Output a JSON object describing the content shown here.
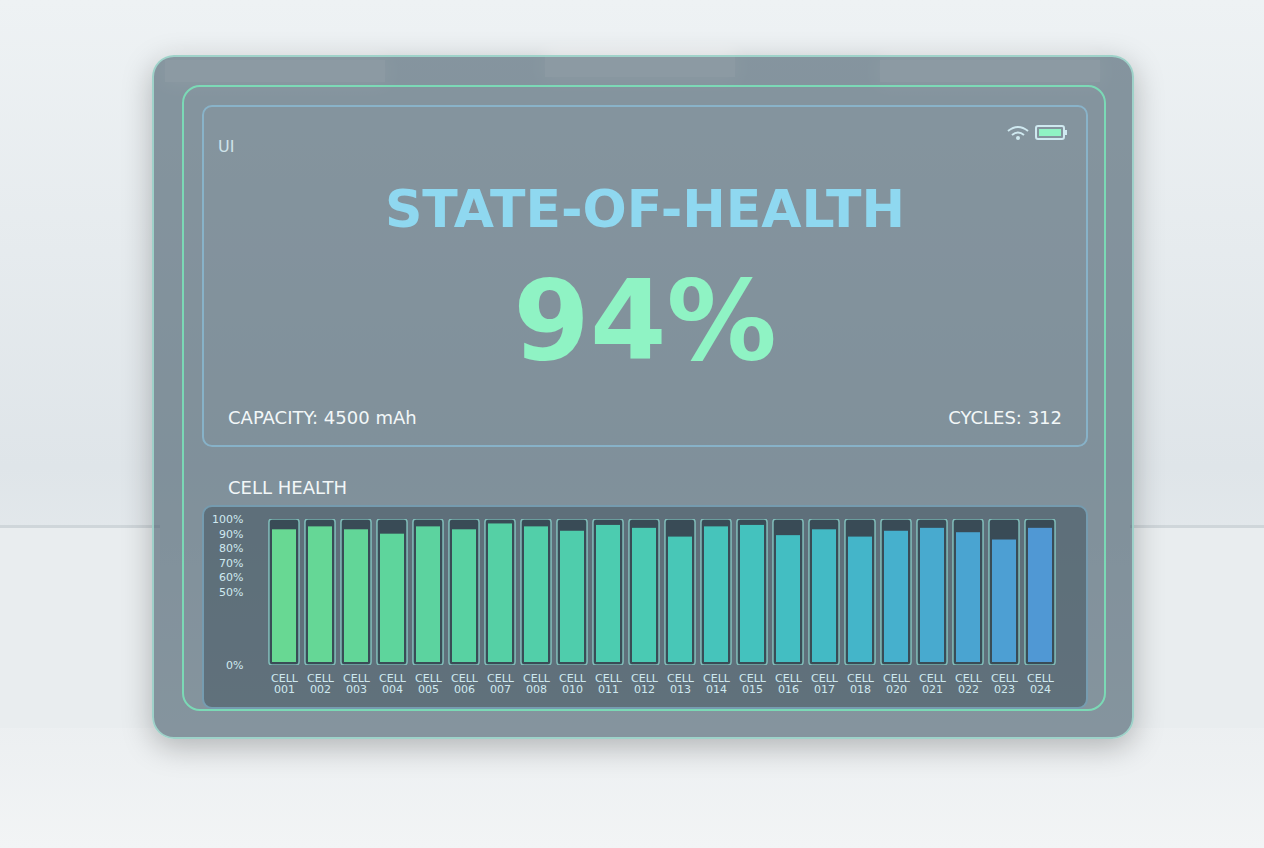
{
  "panel": {
    "corner_label": "UI",
    "title": "STATE-OF-HEALTH",
    "value": "94%",
    "capacity": "CAPACITY: 4500 mAh",
    "cycles": "CYCLES: 312"
  },
  "chart_data": {
    "type": "bar",
    "title": "CELL HEALTH",
    "categories": [
      "CELL 001",
      "CELL 002",
      "CELL 003",
      "CELL 004",
      "CELL 005",
      "CELL 006",
      "CELL 007",
      "CELL 008",
      "CELL 010",
      "CELL 011",
      "CELL 012",
      "CELL 013",
      "CELL 014",
      "CELL 015",
      "CELL 016",
      "CELL 017",
      "CELL 018",
      "CELL 020",
      "CELL 021",
      "CELL 022",
      "CELL 023",
      "CELL 024"
    ],
    "values": [
      95,
      97,
      95,
      92,
      97,
      95,
      99,
      97,
      94,
      98,
      96,
      90,
      97,
      98,
      91,
      95,
      90,
      94,
      96,
      93,
      88,
      96
    ],
    "colors": [
      "#6ee89a",
      "#6ae79d",
      "#67e5a0",
      "#63e4a4",
      "#60e2a7",
      "#5ce1ab",
      "#59dfae",
      "#55deb2",
      "#52dcb6",
      "#4fdaba",
      "#4cd8be",
      "#4ad5c2",
      "#48d2c6",
      "#46cfca",
      "#45cbce",
      "#45c6d2",
      "#46c1d6",
      "#48bbda",
      "#4ab5dd",
      "#4daedf",
      "#50a8e1",
      "#53a1e2"
    ],
    "ylim": [
      0,
      100
    ],
    "yticks": [
      {
        "value": 0,
        "label": "0%"
      },
      {
        "value": 50,
        "label": "50%"
      },
      {
        "value": 60,
        "label": "60%"
      },
      {
        "value": 70,
        "label": "70%"
      },
      {
        "value": 80,
        "label": "80%"
      },
      {
        "value": 90,
        "label": "90%"
      },
      {
        "value": 100,
        "label": "100%"
      }
    ],
    "grid": false
  }
}
